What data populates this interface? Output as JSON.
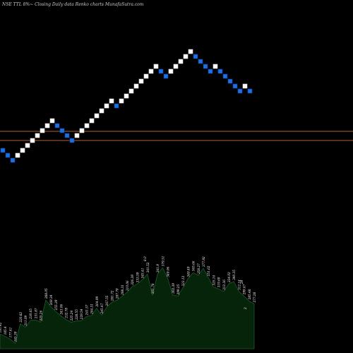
{
  "chart_data": {
    "type": "renko",
    "title": "NSE TTL 8%~  Closing Daily data  Renko  charts MunafaSutra.com",
    "colors": {
      "background": "#000000",
      "brick_up": "#ffffff",
      "brick_down": "#1e6fe0",
      "brick_down_border": "#0a3f9e",
      "reference_line": "#b0622e",
      "volume_fill": "#06240a",
      "volume_line": "#1f5a28"
    },
    "reference_lines": [
      "upper",
      "lower"
    ],
    "bricks": [
      "D",
      "D",
      "D",
      "U",
      "U",
      "U",
      "U",
      "U",
      "U",
      "U",
      "U",
      "D",
      "D",
      "D",
      "D",
      "U",
      "U",
      "U",
      "U",
      "U",
      "U",
      "U",
      "U",
      "D",
      "U",
      "U",
      "U",
      "U",
      "U",
      "U",
      "U",
      "U",
      "D",
      "D",
      "U",
      "U",
      "U",
      "U",
      "U",
      "D",
      "D",
      "D",
      "D",
      "U",
      "D",
      "D",
      "D",
      "D",
      "D",
      "U",
      "D"
    ],
    "volume_labels": [
      "191.42",
      "185.4",
      "177.41",
      "165.39",
      "220.82",
      "211.09",
      "230.65",
      "231.87",
      "225.26",
      "288.05",
      "269.34",
      "255.39",
      "243.06",
      "232.78",
      "225.24",
      "228.55",
      "229.54",
      "241.57",
      "244.31",
      "264.99",
      "245.47",
      "267.55",
      "281.72",
      "287.79",
      "298.31",
      "310.06",
      "326.39",
      "333.59",
      "345.41",
      "361.52",
      "301.78",
      "361.9",
      "379.51",
      "349.06",
      "302.39",
      "299.25",
      "323.12",
      "349.49",
      "365.66",
      "358.27",
      "377.92",
      "351.62",
      "325.14",
      "319.69",
      "312.36",
      "334.02",
      "340.35",
      "312.14",
      "299.47",
      "285.48",
      "277.28",
      "8.0",
      "29",
      "2"
    ]
  }
}
